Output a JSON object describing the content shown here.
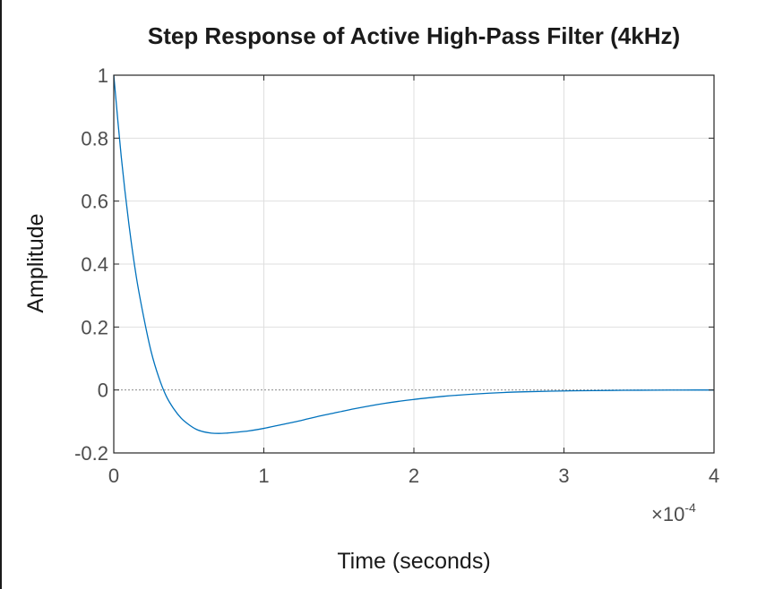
{
  "chart_data": {
    "type": "line",
    "title": "Step Response of Active High-Pass Filter (4kHz)",
    "xlabel": "Time (seconds)",
    "ylabel": "Amplitude",
    "x_exponent_label": "×10",
    "x_exponent_power": "-4",
    "xlim": [
      0,
      4
    ],
    "ylim": [
      -0.2,
      1
    ],
    "x_ticks": [
      0,
      1,
      2,
      3,
      4
    ],
    "x_tick_labels": [
      "0",
      "1",
      "2",
      "3",
      "4"
    ],
    "y_ticks": [
      -0.2,
      0,
      0.2,
      0.4,
      0.6,
      0.8,
      1
    ],
    "y_tick_labels": [
      "-0.2",
      "0",
      "0.2",
      "0.4",
      "0.6",
      "0.8",
      "1"
    ],
    "grid": true,
    "reference_line_y": 0,
    "series": [
      {
        "color": "#0072BD",
        "x": [
          0,
          0.05,
          0.1,
          0.15,
          0.2,
          0.25,
          0.3,
          0.35,
          0.4,
          0.45,
          0.5,
          0.55,
          0.6,
          0.65,
          0.7,
          0.75,
          0.8,
          0.9,
          1.0,
          1.1,
          1.2,
          1.3,
          1.4,
          1.5,
          1.6,
          1.7,
          1.8,
          1.9,
          2.0,
          2.2,
          2.4,
          2.6,
          2.8,
          3.0,
          3.2,
          3.4,
          3.6,
          3.8,
          4.0
        ],
        "y": [
          1.0,
          0.74,
          0.53,
          0.36,
          0.23,
          0.12,
          0.04,
          -0.02,
          -0.06,
          -0.09,
          -0.11,
          -0.125,
          -0.133,
          -0.137,
          -0.138,
          -0.137,
          -0.135,
          -0.13,
          -0.122,
          -0.112,
          -0.102,
          -0.091,
          -0.08,
          -0.07,
          -0.06,
          -0.051,
          -0.043,
          -0.036,
          -0.03,
          -0.02,
          -0.013,
          -0.008,
          -0.005,
          -0.003,
          -0.002,
          -0.001,
          -0.0005,
          -0.0002,
          0.0
        ]
      }
    ]
  }
}
